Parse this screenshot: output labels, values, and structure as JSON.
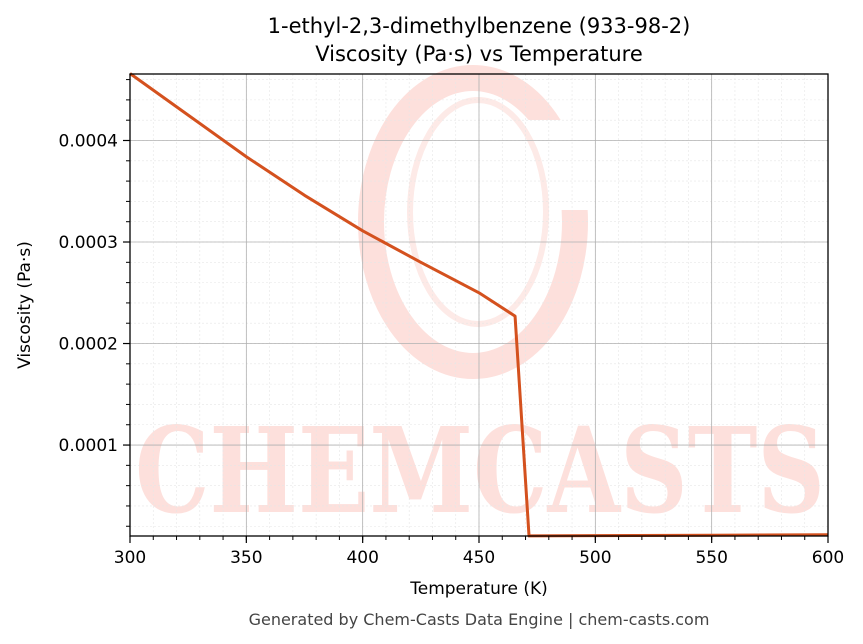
{
  "chart_data": {
    "type": "line",
    "title_line1": "1-ethyl-2,3-dimethylbenzene (933-98-2)",
    "title_line2": "Viscosity (Pa·s) vs Temperature",
    "xlabel": "Temperature (K)",
    "ylabel": "Viscosity (Pa·s)",
    "xlim": [
      300,
      600
    ],
    "ylim": [
      1.04e-05,
      0.0004655
    ],
    "x_ticks": [
      300,
      350,
      400,
      450,
      500,
      550,
      600
    ],
    "x_tick_labels": [
      "300",
      "350",
      "400",
      "450",
      "500",
      "550",
      "600"
    ],
    "y_ticks": [
      0.0001,
      0.0002,
      0.0003,
      0.0004
    ],
    "y_tick_labels": [
      "0.0001",
      "0.0002",
      "0.0003",
      "0.0004"
    ],
    "grid": true,
    "series": [
      {
        "color": "#d4511e",
        "x": [
          300,
          325,
          350,
          375,
          400,
          425,
          450,
          465.5,
          471.5,
          500,
          550,
          600
        ],
        "y": [
          0.000466,
          0.000425,
          0.000384,
          0.000346,
          0.000311,
          0.00028,
          0.00025,
          0.000227,
          1.05e-05,
          1.08e-05,
          1.12e-05,
          1.16e-05
        ]
      }
    ]
  },
  "watermark": {
    "text": "CHEMCASTS",
    "color": "#fde0dc"
  },
  "footer": "Generated by Chem-Casts Data Engine | chem-casts.com"
}
